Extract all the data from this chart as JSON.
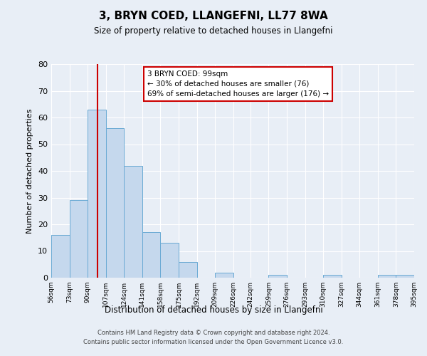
{
  "title": "3, BRYN COED, LLANGEFNI, LL77 8WA",
  "subtitle": "Size of property relative to detached houses in Llangefni",
  "xlabel": "Distribution of detached houses by size in Llangefni",
  "ylabel": "Number of detached properties",
  "bin_edges": [
    56,
    73,
    90,
    107,
    124,
    141,
    158,
    175,
    192,
    209,
    226,
    242,
    259,
    276,
    293,
    310,
    327,
    344,
    361,
    378,
    395
  ],
  "bar_heights": [
    16,
    29,
    63,
    56,
    42,
    17,
    13,
    6,
    0,
    2,
    0,
    0,
    1,
    0,
    0,
    1,
    0,
    0,
    1,
    1
  ],
  "bar_color": "#c5d8ed",
  "bar_edge_color": "#6aaad4",
  "property_size": 99,
  "red_line_color": "#cc0000",
  "annotation_line1": "3 BRYN COED: 99sqm",
  "annotation_line2": "← 30% of detached houses are smaller (76)",
  "annotation_line3": "69% of semi-detached houses are larger (176) →",
  "annotation_box_color": "#ffffff",
  "annotation_box_edge_color": "#cc0000",
  "ylim": [
    0,
    80
  ],
  "yticks": [
    0,
    10,
    20,
    30,
    40,
    50,
    60,
    70,
    80
  ],
  "background_color": "#e8eef6",
  "grid_color": "#ffffff",
  "footer_line1": "Contains HM Land Registry data © Crown copyright and database right 2024.",
  "footer_line2": "Contains public sector information licensed under the Open Government Licence v3.0."
}
